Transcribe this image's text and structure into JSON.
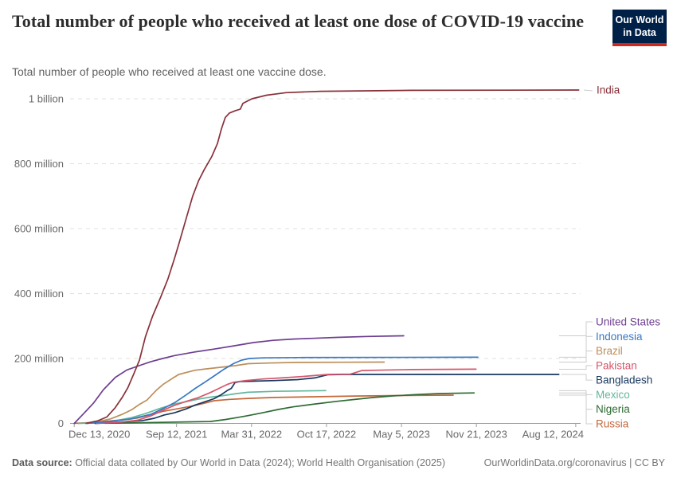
{
  "header": {
    "title": "Total number of people who received at least one dose of COVID-19 vaccine",
    "subtitle": "Total number of people who received at least one vaccine dose.",
    "logo": {
      "line1": "Our World",
      "line2": "in Data",
      "bg": "#002147",
      "bar": "#D0281E"
    }
  },
  "footer": {
    "source_label": "Data source:",
    "source_rest": " Official data collated by Our World in Data (2024); World Health Organisation (2025)",
    "right_text": "OurWorldinData.org/coronavirus | CC BY"
  },
  "chart_data": {
    "type": "line",
    "title": "Total number of people who received at least one dose of COVID-19 vaccine",
    "unit": "people (millions)",
    "grid": "dashed horizontal",
    "legend_position": "right edge, colored entity labels",
    "x_domain": [
      "2020-12-02",
      "2024-08-25"
    ],
    "x_ticks": [
      {
        "date": "2020-12-13",
        "label": "Dec 13, 2020"
      },
      {
        "date": "2021-09-12",
        "label": "Sep 12, 2021"
      },
      {
        "date": "2022-03-31",
        "label": "Mar 31, 2022"
      },
      {
        "date": "2022-10-17",
        "label": "Oct 17, 2022"
      },
      {
        "date": "2023-05-05",
        "label": "May 5, 2023"
      },
      {
        "date": "2023-11-21",
        "label": "Nov 21, 2023"
      },
      {
        "date": "2024-08-12",
        "label": "Aug 12, 2024"
      }
    ],
    "y_ticks": [
      {
        "value": 0,
        "label": "0"
      },
      {
        "value": 200,
        "label": "200 million"
      },
      {
        "value": 400,
        "label": "400 million"
      },
      {
        "value": 600,
        "label": "600 million"
      },
      {
        "value": 800,
        "label": "800 million"
      },
      {
        "value": 1000,
        "label": "1 billion"
      }
    ],
    "series": [
      {
        "name": "India",
        "color": "#883039",
        "end_value_millions": 1027,
        "points": [
          [
            "2021-01-16",
            1
          ],
          [
            "2021-02-14",
            8
          ],
          [
            "2021-03-10",
            20
          ],
          [
            "2021-04-01",
            48
          ],
          [
            "2021-04-20",
            80
          ],
          [
            "2021-05-05",
            110
          ],
          [
            "2021-05-20",
            150
          ],
          [
            "2021-06-05",
            195
          ],
          [
            "2021-06-21",
            267
          ],
          [
            "2021-07-10",
            330
          ],
          [
            "2021-08-01",
            390
          ],
          [
            "2021-08-20",
            445
          ],
          [
            "2021-09-07",
            510
          ],
          [
            "2021-09-20",
            560
          ],
          [
            "2021-10-10",
            640
          ],
          [
            "2021-10-25",
            700
          ],
          [
            "2021-11-10",
            748
          ],
          [
            "2021-11-25",
            782
          ],
          [
            "2021-12-15",
            822
          ],
          [
            "2021-12-30",
            862
          ],
          [
            "2022-01-10",
            908
          ],
          [
            "2022-01-20",
            942
          ],
          [
            "2022-01-31",
            956
          ],
          [
            "2022-02-15",
            963
          ],
          [
            "2022-03-01",
            968
          ],
          [
            "2022-03-08",
            986
          ],
          [
            "2022-04-01",
            1000
          ],
          [
            "2022-05-10",
            1011
          ],
          [
            "2022-07-01",
            1019
          ],
          [
            "2022-10-01",
            1023
          ],
          [
            "2023-06-01",
            1026
          ],
          [
            "2024-08-20",
            1027
          ]
        ]
      },
      {
        "name": "United States",
        "color": "#6D3E91",
        "end_value_millions": 270,
        "points": [
          [
            "2020-12-13",
            0
          ],
          [
            "2021-01-07",
            30
          ],
          [
            "2021-02-02",
            62
          ],
          [
            "2021-03-01",
            104
          ],
          [
            "2021-04-02",
            142
          ],
          [
            "2021-05-03",
            165
          ],
          [
            "2021-06-04",
            178
          ],
          [
            "2021-07-05",
            190
          ],
          [
            "2021-08-06",
            200
          ],
          [
            "2021-09-07",
            209
          ],
          [
            "2021-10-29",
            220
          ],
          [
            "2021-12-21",
            229
          ],
          [
            "2022-02-12",
            239
          ],
          [
            "2022-04-05",
            249
          ],
          [
            "2022-05-28",
            256
          ],
          [
            "2022-07-20",
            260
          ],
          [
            "2022-09-10",
            262
          ],
          [
            "2022-11-13",
            265
          ],
          [
            "2023-02-05",
            268
          ],
          [
            "2023-05-11",
            270
          ]
        ]
      },
      {
        "name": "Indonesia",
        "color": "#3878C2",
        "end_value_millions": 204,
        "points": [
          [
            "2021-01-13",
            0
          ],
          [
            "2021-03-15",
            6
          ],
          [
            "2021-05-15",
            14
          ],
          [
            "2021-07-05",
            28
          ],
          [
            "2021-08-06",
            45
          ],
          [
            "2021-09-07",
            64
          ],
          [
            "2021-10-08",
            88
          ],
          [
            "2021-11-01",
            108
          ],
          [
            "2021-11-25",
            126
          ],
          [
            "2021-12-21",
            146
          ],
          [
            "2022-01-15",
            166
          ],
          [
            "2022-02-12",
            185
          ],
          [
            "2022-03-05",
            195
          ],
          [
            "2022-03-25",
            200
          ],
          [
            "2022-05-01",
            202
          ],
          [
            "2022-08-01",
            203
          ],
          [
            "2023-11-25",
            204
          ]
        ]
      },
      {
        "name": "Brazil",
        "color": "#BC8E5A",
        "end_value_millions": 189,
        "points": [
          [
            "2021-01-17",
            0
          ],
          [
            "2021-02-15",
            6
          ],
          [
            "2021-03-20",
            14
          ],
          [
            "2021-04-20",
            28
          ],
          [
            "2021-05-15",
            42
          ],
          [
            "2021-06-04",
            58
          ],
          [
            "2021-06-25",
            72
          ],
          [
            "2021-07-20",
            102
          ],
          [
            "2021-08-07",
            120
          ],
          [
            "2021-09-01",
            139
          ],
          [
            "2021-09-18",
            151
          ],
          [
            "2021-10-15",
            159
          ],
          [
            "2021-11-01",
            164
          ],
          [
            "2021-12-01",
            168
          ],
          [
            "2022-01-01",
            172
          ],
          [
            "2022-02-15",
            178
          ],
          [
            "2022-03-22",
            184
          ],
          [
            "2022-05-15",
            186
          ],
          [
            "2022-08-01",
            188
          ],
          [
            "2022-12-01",
            188.5
          ],
          [
            "2023-03-20",
            189
          ]
        ]
      },
      {
        "name": "Pakistan",
        "color": "#D4566B",
        "end_value_millions": 167,
        "points": [
          [
            "2021-02-10",
            0
          ],
          [
            "2021-04-15",
            4
          ],
          [
            "2021-06-01",
            10
          ],
          [
            "2021-07-05",
            23
          ],
          [
            "2021-08-06",
            40
          ],
          [
            "2021-09-07",
            56
          ],
          [
            "2021-10-08",
            68
          ],
          [
            "2021-11-10",
            80
          ],
          [
            "2021-12-11",
            95
          ],
          [
            "2022-01-05",
            109
          ],
          [
            "2022-01-25",
            120
          ],
          [
            "2022-02-12",
            127
          ],
          [
            "2022-03-15",
            132
          ],
          [
            "2022-05-01",
            137
          ],
          [
            "2022-07-01",
            141
          ],
          [
            "2022-08-20",
            145
          ],
          [
            "2022-10-20",
            151
          ],
          [
            "2022-12-20",
            152
          ],
          [
            "2023-01-20",
            163
          ],
          [
            "2023-03-01",
            164
          ],
          [
            "2023-06-01",
            166
          ],
          [
            "2023-11-20",
            167
          ]
        ]
      },
      {
        "name": "Bangladesh",
        "color": "#18375F",
        "end_value_millions": 151,
        "points": [
          [
            "2021-02-07",
            0
          ],
          [
            "2021-04-10",
            4
          ],
          [
            "2021-06-10",
            8
          ],
          [
            "2021-07-15",
            16
          ],
          [
            "2021-08-10",
            26
          ],
          [
            "2021-09-07",
            33
          ],
          [
            "2021-10-08",
            45
          ],
          [
            "2021-11-01",
            57
          ],
          [
            "2021-11-25",
            66
          ],
          [
            "2021-12-21",
            76
          ],
          [
            "2022-01-10",
            89
          ],
          [
            "2022-01-25",
            101
          ],
          [
            "2022-02-05",
            108
          ],
          [
            "2022-02-15",
            126
          ],
          [
            "2022-02-28",
            129
          ],
          [
            "2022-04-01",
            130
          ],
          [
            "2022-06-01",
            132
          ],
          [
            "2022-08-01",
            135
          ],
          [
            "2022-09-15",
            140
          ],
          [
            "2022-10-20",
            150
          ],
          [
            "2022-12-01",
            151
          ],
          [
            "2024-06-28",
            151
          ]
        ]
      },
      {
        "name": "Mexico",
        "color": "#62B79E",
        "end_value_millions": 101,
        "points": [
          [
            "2020-12-24",
            0
          ],
          [
            "2021-02-15",
            2
          ],
          [
            "2021-04-01",
            8
          ],
          [
            "2021-05-15",
            18
          ],
          [
            "2021-06-20",
            30
          ],
          [
            "2021-08-01",
            47
          ],
          [
            "2021-09-07",
            60
          ],
          [
            "2021-10-08",
            67
          ],
          [
            "2021-11-10",
            75
          ],
          [
            "2021-12-11",
            81
          ],
          [
            "2022-01-10",
            85
          ],
          [
            "2022-02-20",
            92
          ],
          [
            "2022-03-22",
            96
          ],
          [
            "2022-06-01",
            99
          ],
          [
            "2022-10-15",
            101
          ]
        ]
      },
      {
        "name": "Nigeria",
        "color": "#2E6B34",
        "end_value_millions": 94,
        "points": [
          [
            "2021-03-05",
            0.5
          ],
          [
            "2021-06-01",
            2
          ],
          [
            "2021-09-07",
            4
          ],
          [
            "2021-12-11",
            6
          ],
          [
            "2022-01-20",
            12
          ],
          [
            "2022-02-20",
            18
          ],
          [
            "2022-03-22",
            24
          ],
          [
            "2022-04-30",
            33
          ],
          [
            "2022-06-10",
            43
          ],
          [
            "2022-07-20",
            51
          ],
          [
            "2022-09-10",
            59
          ],
          [
            "2022-11-13",
            68
          ],
          [
            "2023-01-10",
            75
          ],
          [
            "2023-02-20",
            80
          ],
          [
            "2023-04-15",
            85
          ],
          [
            "2023-06-15",
            89
          ],
          [
            "2023-08-15",
            92
          ],
          [
            "2023-11-15",
            94
          ]
        ]
      },
      {
        "name": "Russia",
        "color": "#C4673A",
        "end_value_millions": 87,
        "points": [
          [
            "2020-12-15",
            0.2
          ],
          [
            "2021-02-01",
            3
          ],
          [
            "2021-04-01",
            9
          ],
          [
            "2021-06-01",
            17
          ],
          [
            "2021-07-05",
            27
          ],
          [
            "2021-08-06",
            37
          ],
          [
            "2021-09-18",
            46
          ],
          [
            "2021-10-30",
            55
          ],
          [
            "2021-12-01",
            64
          ],
          [
            "2021-12-21",
            70
          ],
          [
            "2022-02-01",
            74
          ],
          [
            "2022-03-22",
            77
          ],
          [
            "2022-06-01",
            80
          ],
          [
            "2022-10-01",
            82.5
          ],
          [
            "2023-01-01",
            84.5
          ],
          [
            "2023-05-01",
            86
          ],
          [
            "2023-09-20",
            87
          ]
        ]
      }
    ],
    "style": {
      "grid_color": "#E0E0E0",
      "axis_color": "#9E9E9E",
      "tick_text_color": "#696969",
      "connector_color": "#CCCCCC"
    }
  }
}
